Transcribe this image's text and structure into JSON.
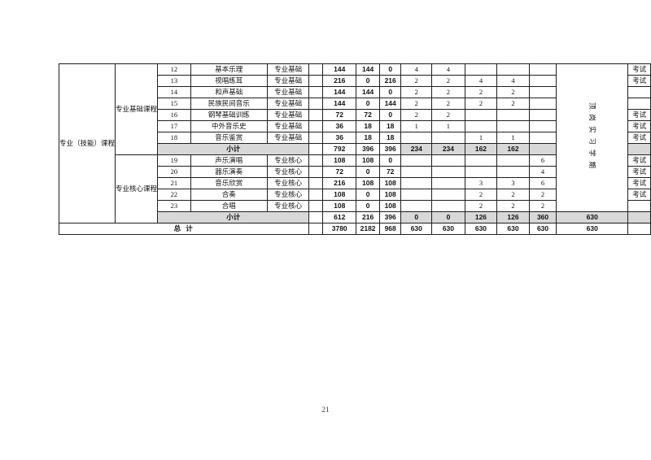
{
  "page": {
    "number": "21"
  },
  "colors": {
    "shaded_row": "#d8d8d8",
    "border": "#1f1f1f",
    "page_bg": "#ffffff"
  },
  "labels": {
    "left_group": "专业（技能）课程",
    "subtotal": "小计",
    "total": "总 计",
    "practicum_column": "顶岗实习学期",
    "exam": "考试"
  },
  "groups": [
    {
      "label": "专业基础课程",
      "rows": [
        {
          "no": "12",
          "name": "基本乐理",
          "type": "专业基础",
          "hours": [
            "144",
            "144",
            "0"
          ],
          "sems": [
            "4",
            "4",
            "",
            "",
            ""
          ],
          "exam": "考试"
        },
        {
          "no": "13",
          "name": "视唱练耳",
          "type": "专业基础",
          "hours": [
            "216",
            "0",
            "216"
          ],
          "sems": [
            "2",
            "2",
            "4",
            "4",
            ""
          ],
          "exam": "考试"
        },
        {
          "no": "14",
          "name": "和声基础",
          "type": "专业基础",
          "hours": [
            "144",
            "144",
            "0"
          ],
          "sems": [
            "2",
            "2",
            "2",
            "2",
            ""
          ],
          "exam": ""
        },
        {
          "no": "15",
          "name": "民族民间音乐",
          "type": "专业基础",
          "hours": [
            "144",
            "0",
            "144"
          ],
          "sems": [
            "2",
            "2",
            "2",
            "2",
            ""
          ],
          "exam": ""
        },
        {
          "no": "16",
          "name": "钢琴基础训练",
          "type": "专业基础",
          "hours": [
            "72",
            "72",
            "0"
          ],
          "sems": [
            "2",
            "2",
            "",
            "",
            ""
          ],
          "exam": "考试"
        },
        {
          "no": "17",
          "name": "中外音乐史",
          "type": "专业基础",
          "hours": [
            "36",
            "18",
            "18"
          ],
          "sems": [
            "1",
            "1",
            "",
            "",
            ""
          ],
          "exam": "考试"
        },
        {
          "no": "18",
          "name": "音乐鉴赏",
          "type": "专业基础",
          "hours": [
            "36",
            "18",
            "18"
          ],
          "sems": [
            "",
            "",
            "1",
            "1",
            ""
          ],
          "exam": "考试"
        }
      ],
      "subtotal": {
        "hours": [
          "792",
          "396",
          "396"
        ],
        "sems": [
          "234",
          "234",
          "162",
          "162",
          ""
        ],
        "practicum": "",
        "exam": ""
      }
    },
    {
      "label": "专业核心课程",
      "rows": [
        {
          "no": "19",
          "name": "声乐演唱",
          "type": "专业核心",
          "hours": [
            "108",
            "108",
            "0"
          ],
          "sems": [
            "",
            "",
            "",
            "",
            "6"
          ],
          "exam": "考试"
        },
        {
          "no": "20",
          "name": "器乐演奏",
          "type": "专业核心",
          "hours": [
            "72",
            "0",
            "72"
          ],
          "sems": [
            "",
            "",
            "",
            "",
            "4"
          ],
          "exam": "考试"
        },
        {
          "no": "21",
          "name": "音乐欣赏",
          "type": "专业核心",
          "hours": [
            "216",
            "108",
            "108"
          ],
          "sems": [
            "",
            "",
            "3",
            "3",
            "6"
          ],
          "exam": "考试"
        },
        {
          "no": "22",
          "name": "合奏",
          "type": "专业核心",
          "hours": [
            "108",
            "0",
            "108"
          ],
          "sems": [
            "",
            "",
            "2",
            "2",
            "2"
          ],
          "exam": "考试"
        },
        {
          "no": "23",
          "name": "合唱",
          "type": "专业核心",
          "hours": [
            "108",
            "0",
            "108"
          ],
          "sems": [
            "",
            "",
            "2",
            "2",
            "2"
          ],
          "exam": ""
        }
      ],
      "subtotal": {
        "hours": [
          "612",
          "216",
          "396"
        ],
        "sems": [
          "0",
          "0",
          "126",
          "126",
          "360"
        ],
        "practicum": "630",
        "exam": ""
      }
    }
  ],
  "total": {
    "hours": [
      "3780",
      "2182",
      "968"
    ],
    "sems": [
      "630",
      "630",
      "630",
      "630",
      "630"
    ],
    "practicum": "630",
    "exam": ""
  }
}
